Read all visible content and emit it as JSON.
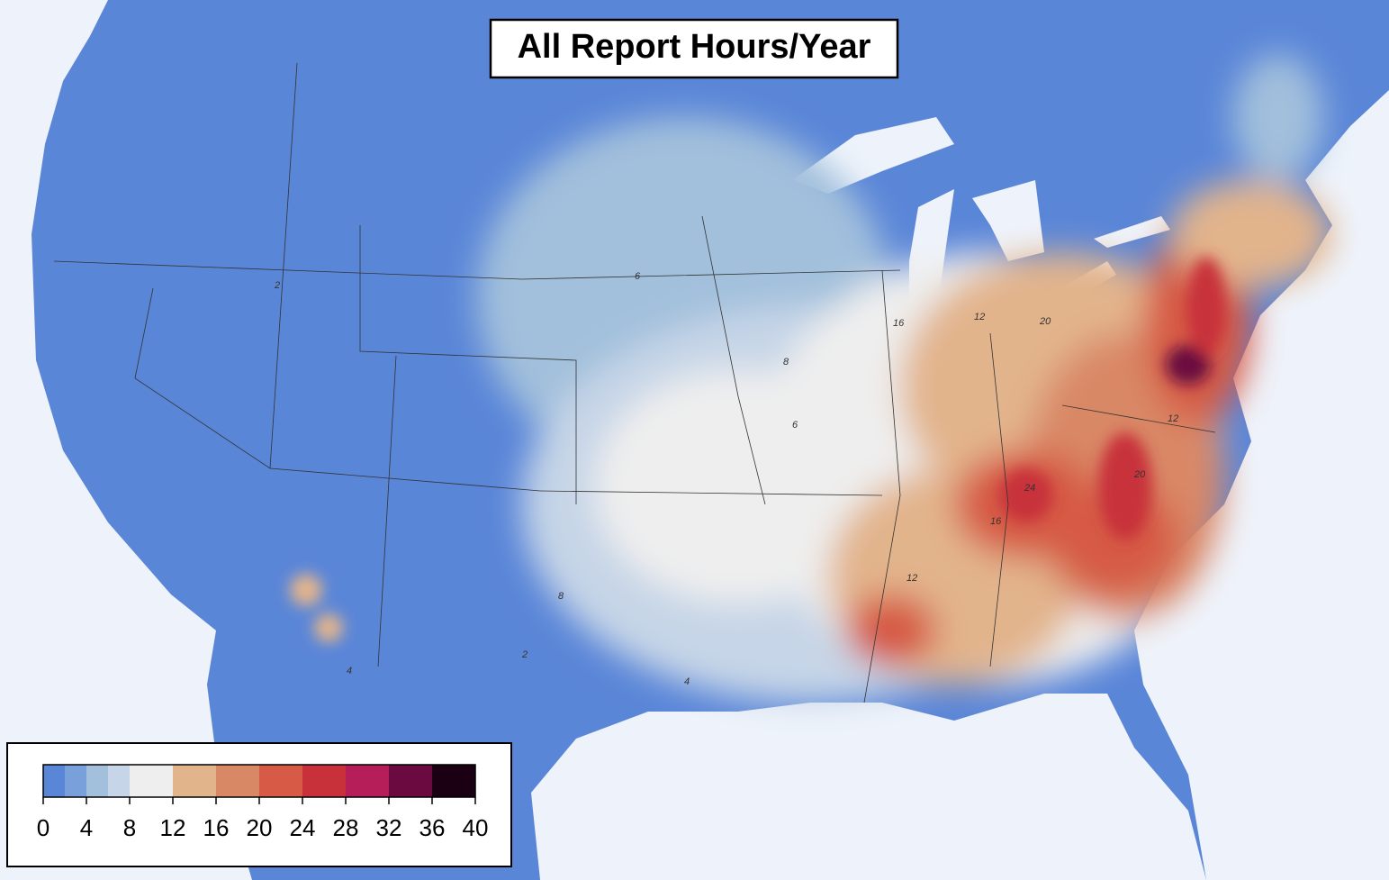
{
  "title": "All Report Hours/Year",
  "colorbar": {
    "levels": [
      0,
      2,
      4,
      6,
      8,
      12,
      16,
      20,
      24,
      28,
      32,
      36,
      40
    ],
    "colors": [
      "#5a86d8",
      "#7aa0dc",
      "#a2c0dc",
      "#c6d5e7",
      "#eeeeee",
      "#e2b48c",
      "#d98866",
      "#d65a45",
      "#c8303a",
      "#b51e58",
      "#6b0a40",
      "#1b0013"
    ],
    "ticks": [
      0,
      4,
      8,
      12,
      16,
      20,
      24,
      28,
      32,
      36,
      40
    ]
  },
  "contour_labels": [
    "2",
    "4",
    "6",
    "8",
    "12",
    "16",
    "20",
    "24",
    "6",
    "12",
    "16",
    "20",
    "8",
    "4",
    "12",
    "2"
  ]
}
